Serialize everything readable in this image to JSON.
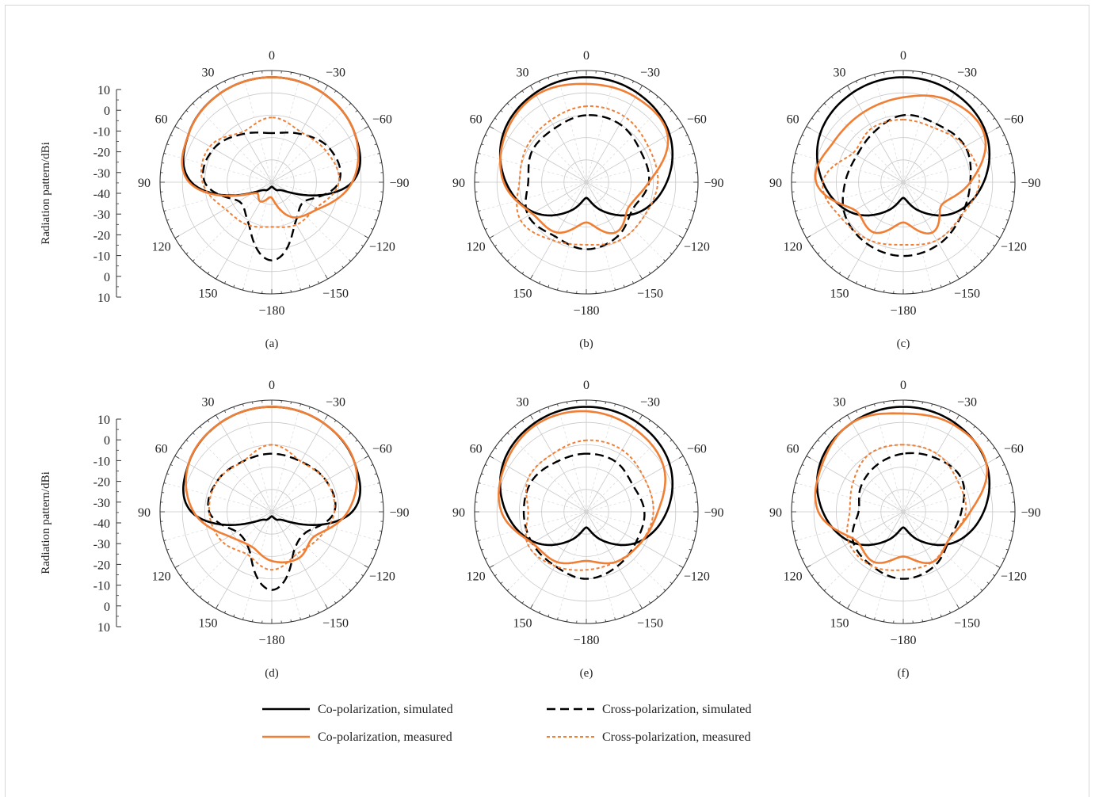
{
  "figure": {
    "ylabel": "Radiation pattern/dBi",
    "radial_ticks": [
      "10",
      "0",
      "-10",
      "-20",
      "-30",
      "-40",
      "-30",
      "-20",
      "-10",
      "0",
      "10"
    ],
    "angle_ticks": [
      "0",
      "−30",
      "−60",
      "−90",
      "−120",
      "−150",
      "−180",
      "150",
      "120",
      "90",
      "60",
      "30"
    ]
  },
  "legend": {
    "items": [
      {
        "label": "Co-polarization, simulated",
        "color": "#000000",
        "style": "solid"
      },
      {
        "label": "Cross-polarization, simulated",
        "color": "#000000",
        "style": "dash"
      },
      {
        "label": "Co-polarization, measured",
        "color": "#f07f35",
        "style": "solid"
      },
      {
        "label": "Cross-polarization, measured",
        "color": "#f07f35",
        "style": "dot"
      }
    ]
  },
  "colors": {
    "simulated": "#000000",
    "measured": "#f07f35"
  },
  "chart_data": [
    {
      "type": "polar",
      "label": "(a)",
      "rlim": [
        -40,
        10
      ],
      "series": [
        {
          "name": "Co-polarization, simulated",
          "theta": [
            0,
            30,
            60,
            90,
            120,
            150,
            180,
            210,
            240,
            270,
            300,
            330
          ],
          "r": [
            7,
            6,
            3,
            -4,
            -31,
            -36,
            -38,
            -36,
            -31,
            -4,
            3,
            6
          ]
        },
        {
          "name": "Cross-polarization, simulated",
          "theta": [
            0,
            30,
            60,
            90,
            120,
            150,
            180,
            210,
            240,
            270,
            300,
            330
          ],
          "r": [
            -18,
            -15,
            -10,
            -10,
            -23,
            -19,
            -5,
            -19,
            -23,
            -10,
            -10,
            -15
          ]
        },
        {
          "name": "Co-polarization, measured",
          "theta": [
            0,
            30,
            60,
            90,
            120,
            150,
            180,
            210,
            240,
            270,
            300,
            330
          ],
          "r": [
            7,
            6,
            3,
            -3,
            -30,
            -30,
            -33,
            -22,
            -16,
            -4,
            3,
            6
          ]
        },
        {
          "name": "Cross-polarization, measured",
          "theta": [
            0,
            30,
            60,
            90,
            120,
            150,
            180,
            210,
            240,
            270,
            300,
            330
          ],
          "r": [
            -11,
            -14,
            -8,
            -9,
            -16,
            -18,
            -20,
            -18,
            -17,
            -10,
            -12,
            -14
          ]
        }
      ]
    },
    {
      "type": "polar",
      "label": "(b)",
      "rlim": [
        -40,
        10
      ],
      "series": [
        {
          "name": "Co-polarization, simulated",
          "theta": [
            0,
            30,
            60,
            90,
            120,
            150,
            180,
            210,
            240,
            270,
            300,
            330
          ],
          "r": [
            7,
            6,
            3,
            -4,
            -13,
            -25,
            -33,
            -25,
            -13,
            -4,
            3,
            6
          ]
        },
        {
          "name": "Cross-polarization, simulated",
          "theta": [
            0,
            30,
            60,
            90,
            120,
            150,
            180,
            210,
            240,
            270,
            300,
            330
          ],
          "r": [
            -10,
            -12,
            -12,
            -14,
            -10,
            -12,
            -10,
            -12,
            -16,
            -12,
            -12,
            -10
          ]
        },
        {
          "name": "Co-polarization, measured",
          "theta": [
            0,
            30,
            60,
            90,
            120,
            150,
            180,
            210,
            240,
            270,
            300,
            330
          ],
          "r": [
            4,
            5,
            2,
            -3,
            -12,
            -14,
            -22,
            -14,
            -18,
            -12,
            2,
            4
          ]
        },
        {
          "name": "Cross-polarization, measured",
          "theta": [
            0,
            30,
            60,
            90,
            120,
            150,
            180,
            210,
            240,
            270,
            300,
            330
          ],
          "r": [
            -6,
            -8,
            -9,
            -10,
            -6,
            -10,
            -12,
            -10,
            -10,
            -8,
            -8,
            -6
          ]
        }
      ]
    },
    {
      "type": "polar",
      "label": "(c)",
      "rlim": [
        -40,
        10
      ],
      "series": [
        {
          "name": "Co-polarization, simulated",
          "theta": [
            0,
            30,
            60,
            90,
            120,
            150,
            180,
            210,
            240,
            270,
            300,
            330
          ],
          "r": [
            7,
            6,
            3,
            -4,
            -13,
            -25,
            -33,
            -25,
            -13,
            -4,
            3,
            6
          ]
        },
        {
          "name": "Cross-polarization, simulated",
          "theta": [
            0,
            30,
            60,
            90,
            120,
            150,
            180,
            210,
            240,
            270,
            300,
            330
          ],
          "r": [
            -10,
            -14,
            -16,
            -14,
            -10,
            -8,
            -7,
            -8,
            -10,
            -10,
            -8,
            -10
          ]
        },
        {
          "name": "Co-polarization, measured",
          "theta": [
            0,
            30,
            60,
            90,
            120,
            150,
            180,
            210,
            240,
            270,
            300,
            330
          ],
          "r": [
            -2,
            -4,
            -4,
            -1,
            -15,
            -14,
            -22,
            -14,
            -20,
            -10,
            2,
            2
          ]
        },
        {
          "name": "Cross-polarization, measured",
          "theta": [
            0,
            30,
            60,
            90,
            120,
            150,
            180,
            210,
            240,
            270,
            300,
            330
          ],
          "r": [
            -12,
            -12,
            -14,
            -4,
            -8,
            -10,
            -12,
            -10,
            -10,
            -6,
            -8,
            -12
          ]
        }
      ]
    },
    {
      "type": "polar",
      "label": "(d)",
      "rlim": [
        -40,
        10
      ],
      "series": [
        {
          "name": "Co-polarization, simulated",
          "theta": [
            0,
            30,
            60,
            90,
            120,
            150,
            180,
            210,
            240,
            270,
            300,
            330
          ],
          "r": [
            7,
            6,
            3,
            -4,
            -31,
            -36,
            -38,
            -36,
            -31,
            -4,
            3,
            6
          ]
        },
        {
          "name": "Cross-polarization, simulated",
          "theta": [
            0,
            30,
            60,
            90,
            120,
            150,
            180,
            210,
            240,
            270,
            300,
            330
          ],
          "r": [
            -14,
            -14,
            -12,
            -12,
            -22,
            -20,
            -5,
            -20,
            -22,
            -12,
            -12,
            -14
          ]
        },
        {
          "name": "Co-polarization, measured",
          "theta": [
            0,
            30,
            60,
            90,
            120,
            150,
            180,
            210,
            240,
            270,
            300,
            330
          ],
          "r": [
            7,
            6,
            3,
            -5,
            -18,
            -22,
            -18,
            -16,
            -18,
            -6,
            3,
            6
          ]
        },
        {
          "name": "Cross-polarization, measured",
          "theta": [
            0,
            30,
            60,
            90,
            120,
            150,
            180,
            210,
            240,
            270,
            300,
            330
          ],
          "r": [
            -10,
            -14,
            -12,
            -12,
            -14,
            -18,
            -14,
            -18,
            -16,
            -12,
            -12,
            -14
          ]
        }
      ]
    },
    {
      "type": "polar",
      "label": "(e)",
      "rlim": [
        -40,
        10
      ],
      "series": [
        {
          "name": "Co-polarization, simulated",
          "theta": [
            0,
            30,
            60,
            90,
            120,
            150,
            180,
            210,
            240,
            270,
            300,
            330
          ],
          "r": [
            7,
            6,
            3,
            -4,
            -13,
            -25,
            -33,
            -25,
            -13,
            -4,
            3,
            6
          ]
        },
        {
          "name": "Cross-polarization, simulated",
          "theta": [
            0,
            30,
            60,
            90,
            120,
            150,
            180,
            210,
            240,
            270,
            300,
            330
          ],
          "r": [
            -14,
            -14,
            -12,
            -12,
            -12,
            -12,
            -10,
            -12,
            -14,
            -14,
            -16,
            -14
          ]
        },
        {
          "name": "Co-polarization, measured",
          "theta": [
            0,
            30,
            60,
            90,
            120,
            150,
            180,
            210,
            240,
            270,
            300,
            330
          ],
          "r": [
            5,
            5,
            2,
            -2,
            -12,
            -14,
            -18,
            -14,
            -12,
            -8,
            0,
            3
          ]
        },
        {
          "name": "Cross-polarization, measured",
          "theta": [
            0,
            30,
            60,
            90,
            120,
            150,
            180,
            210,
            240,
            270,
            300,
            330
          ],
          "r": [
            -8,
            -10,
            -10,
            -14,
            -10,
            -12,
            -14,
            -14,
            -12,
            -10,
            -10,
            -8
          ]
        }
      ]
    },
    {
      "type": "polar",
      "label": "(f)",
      "rlim": [
        -40,
        10
      ],
      "series": [
        {
          "name": "Co-polarization, simulated",
          "theta": [
            0,
            30,
            60,
            90,
            120,
            150,
            180,
            210,
            240,
            270,
            300,
            330
          ],
          "r": [
            7,
            6,
            3,
            -4,
            -13,
            -25,
            -33,
            -25,
            -13,
            -4,
            3,
            6
          ]
        },
        {
          "name": "Cross-polarization, simulated",
          "theta": [
            0,
            30,
            60,
            90,
            120,
            150,
            180,
            210,
            240,
            270,
            300,
            330
          ],
          "r": [
            -14,
            -16,
            -18,
            -20,
            -14,
            -12,
            -10,
            -12,
            -16,
            -14,
            -10,
            -12
          ]
        },
        {
          "name": "Co-polarization, measured",
          "theta": [
            0,
            30,
            60,
            90,
            120,
            150,
            180,
            210,
            240,
            270,
            300,
            330
          ],
          "r": [
            4,
            6,
            2,
            -2,
            -15,
            -14,
            -20,
            -14,
            -16,
            -10,
            3,
            5
          ]
        },
        {
          "name": "Cross-polarization, measured",
          "theta": [
            0,
            30,
            60,
            90,
            120,
            150,
            180,
            210,
            240,
            270,
            300,
            330
          ],
          "r": [
            -10,
            -10,
            -14,
            -16,
            -12,
            -12,
            -14,
            -14,
            -16,
            -12,
            -12,
            -10
          ]
        }
      ]
    }
  ]
}
